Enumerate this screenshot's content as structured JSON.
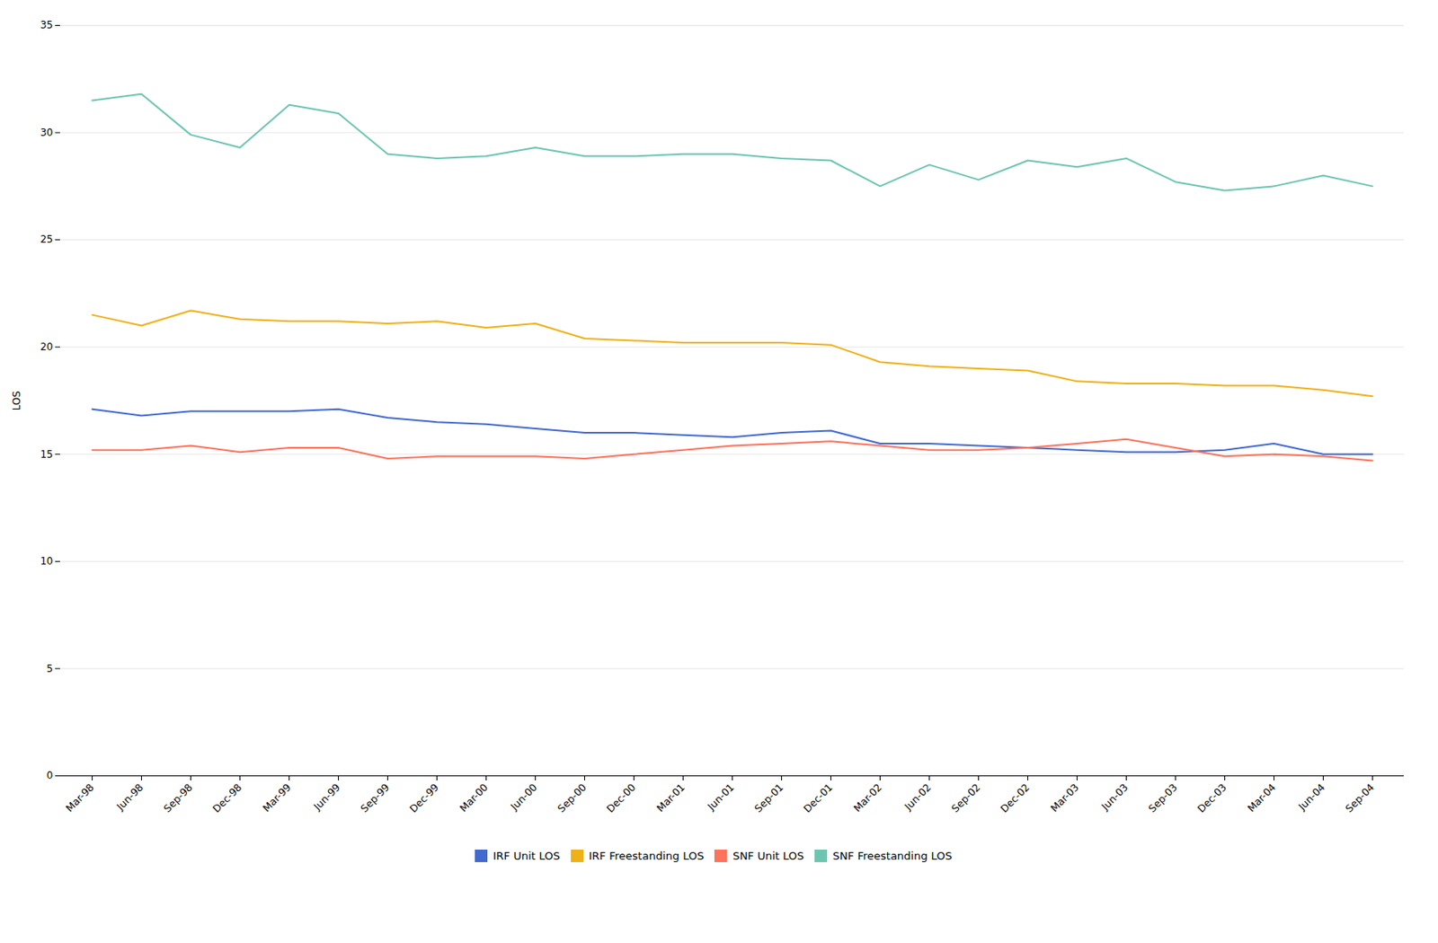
{
  "chart_data": {
    "type": "line",
    "categories": [
      "Mar-98",
      "Jun-98",
      "Sep-98",
      "Dec-98",
      "Mar-99",
      "Jun-99",
      "Sep-99",
      "Dec-99",
      "Mar-00",
      "Jun-00",
      "Sep-00",
      "Dec-00",
      "Mar-01",
      "Jun-01",
      "Sep-01",
      "Dec-01",
      "Mar-02",
      "Jun-02",
      "Sep-02",
      "Dec-02",
      "Mar-03",
      "Jun-03",
      "Sep-03",
      "Dec-03",
      "Mar-04",
      "Jun-04",
      "Sep-04"
    ],
    "series": [
      {
        "name": "IRF Unit LOS",
        "values": [
          17.1,
          16.8,
          17.0,
          17.0,
          17.0,
          17.1,
          16.7,
          16.5,
          16.4,
          16.2,
          16.0,
          16.0,
          15.9,
          15.8,
          16.0,
          16.1,
          15.5,
          15.5,
          15.4,
          15.3,
          15.2,
          15.1,
          15.1,
          15.2,
          15.5,
          15.0,
          15.0
        ]
      },
      {
        "name": "IRF Freestanding LOS",
        "values": [
          21.5,
          21.0,
          21.7,
          21.3,
          21.2,
          21.2,
          21.1,
          21.2,
          20.9,
          21.1,
          20.4,
          20.3,
          20.2,
          20.2,
          20.2,
          20.1,
          19.3,
          19.1,
          19.0,
          18.9,
          18.4,
          18.3,
          18.3,
          18.2,
          18.2,
          18.0,
          17.7
        ]
      },
      {
        "name": "SNF Unit LOS",
        "values": [
          15.2,
          15.2,
          15.4,
          15.1,
          15.3,
          15.3,
          14.8,
          14.9,
          14.9,
          14.9,
          14.8,
          15.0,
          15.2,
          15.4,
          15.5,
          15.6,
          15.4,
          15.2,
          15.2,
          15.3,
          15.5,
          15.7,
          15.3,
          14.9,
          15.0,
          14.9,
          14.7
        ]
      },
      {
        "name": "SNF Freestanding LOS",
        "values": [
          31.5,
          31.8,
          29.9,
          29.3,
          31.3,
          30.9,
          29.0,
          28.8,
          28.9,
          29.3,
          28.9,
          28.9,
          29.0,
          29.0,
          28.8,
          28.7,
          27.5,
          28.5,
          27.8,
          28.7,
          28.4,
          28.8,
          27.7,
          27.3,
          27.5,
          28.0,
          27.5
        ]
      }
    ],
    "ylabel": "LOS",
    "ylim": [
      0,
      35
    ],
    "yticks": [
      0,
      5,
      10,
      15,
      20,
      25,
      30,
      35
    ],
    "grid": true,
    "legend": "bottom"
  }
}
